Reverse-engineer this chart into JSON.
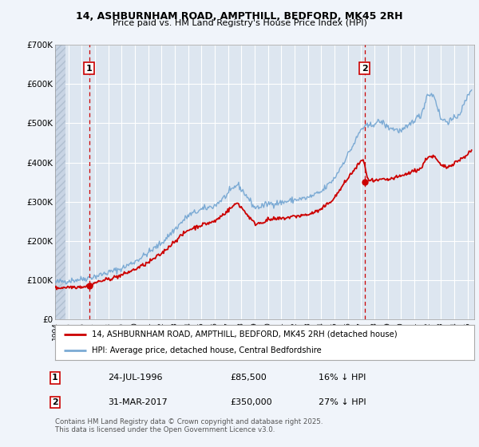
{
  "title1": "14, ASHBURNHAM ROAD, AMPTHILL, BEDFORD, MK45 2RH",
  "title2": "Price paid vs. HM Land Registry's House Price Index (HPI)",
  "bg_color": "#f0f4fa",
  "plot_bg_color": "#dde6f0",
  "grid_color": "#ffffff",
  "red_color": "#cc0000",
  "blue_color": "#7baad4",
  "hatch_color": "#c8d4e4",
  "marker1_x": 1996.56,
  "marker1_y": 85500,
  "marker2_x": 2017.25,
  "marker2_y": 350000,
  "legend_line1": "14, ASHBURNHAM ROAD, AMPTHILL, BEDFORD, MK45 2RH (detached house)",
  "legend_line2": "HPI: Average price, detached house, Central Bedfordshire",
  "table_row1": [
    "1",
    "24-JUL-1996",
    "£85,500",
    "16% ↓ HPI"
  ],
  "table_row2": [
    "2",
    "31-MAR-2017",
    "£350,000",
    "27% ↓ HPI"
  ],
  "footnote1": "Contains HM Land Registry data © Crown copyright and database right 2025.",
  "footnote2": "This data is licensed under the Open Government Licence v3.0.",
  "xmin": 1994.0,
  "xmax": 2025.5,
  "ymin": 0,
  "ymax": 700000,
  "yticks": [
    0,
    100000,
    200000,
    300000,
    400000,
    500000,
    600000,
    700000
  ],
  "ytick_labels": [
    "£0",
    "£100K",
    "£200K",
    "£300K",
    "£400K",
    "£500K",
    "£600K",
    "£700K"
  ]
}
